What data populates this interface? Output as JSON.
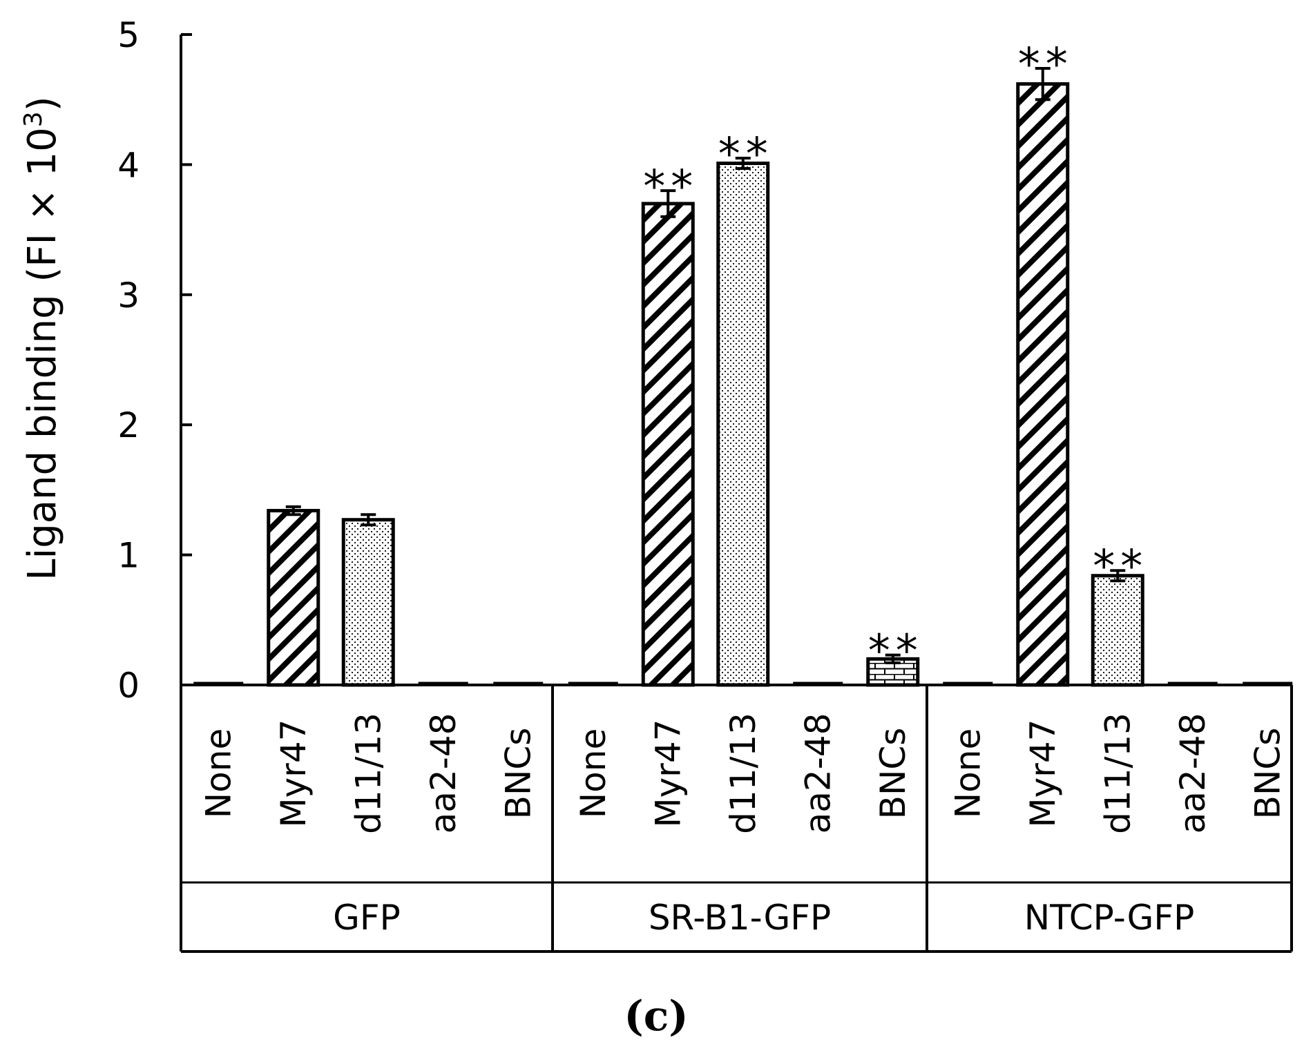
{
  "chart_data": {
    "type": "bar",
    "ylabel": "Ligand binding (FI × 10",
    "ylabel_sup": "3",
    "ylabel_close": ")",
    "ylim": [
      0,
      5
    ],
    "yticks": [
      0,
      1,
      2,
      3,
      4,
      5
    ],
    "panel_label": "(c)",
    "significance_mark": "**",
    "patterns": {
      "None": "none",
      "Myr47": "diagonal-hatch",
      "d11/13": "dots",
      "aa2-48": "none",
      "BNCs": "brick"
    },
    "groups": [
      {
        "name": "GFP",
        "bars": [
          {
            "category": "None",
            "value": 0.0,
            "error": 0.0,
            "significant": false
          },
          {
            "category": "Myr47",
            "value": 1.34,
            "error": 0.03,
            "significant": false
          },
          {
            "category": "d11/13",
            "value": 1.27,
            "error": 0.04,
            "significant": false
          },
          {
            "category": "aa2-48",
            "value": 0.0,
            "error": 0.0,
            "significant": false
          },
          {
            "category": "BNCs",
            "value": 0.0,
            "error": 0.0,
            "significant": false
          }
        ]
      },
      {
        "name": "SR-B1-GFP",
        "bars": [
          {
            "category": "None",
            "value": 0.0,
            "error": 0.0,
            "significant": false
          },
          {
            "category": "Myr47",
            "value": 3.7,
            "error": 0.1,
            "significant": true
          },
          {
            "category": "d11/13",
            "value": 4.01,
            "error": 0.04,
            "significant": true
          },
          {
            "category": "aa2-48",
            "value": 0.0,
            "error": 0.0,
            "significant": false
          },
          {
            "category": "BNCs",
            "value": 0.2,
            "error": 0.03,
            "significant": true
          }
        ]
      },
      {
        "name": "NTCP-GFP",
        "bars": [
          {
            "category": "None",
            "value": 0.0,
            "error": 0.0,
            "significant": false
          },
          {
            "category": "Myr47",
            "value": 4.62,
            "error": 0.12,
            "significant": true
          },
          {
            "category": "d11/13",
            "value": 0.84,
            "error": 0.04,
            "significant": true
          },
          {
            "category": "aa2-48",
            "value": 0.0,
            "error": 0.0,
            "significant": false
          },
          {
            "category": "BNCs",
            "value": 0.0,
            "error": 0.0,
            "significant": false
          }
        ]
      }
    ]
  }
}
